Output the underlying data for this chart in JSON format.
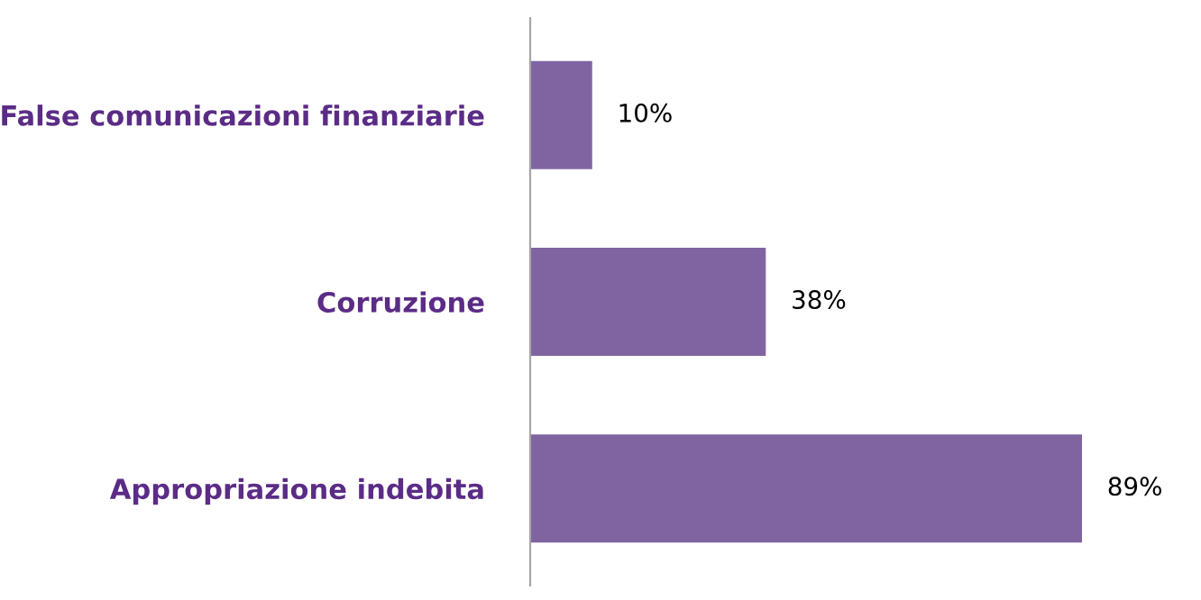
{
  "chart_data": {
    "type": "bar",
    "orientation": "horizontal",
    "categories": [
      "False comunicazioni finanziarie",
      "Corruzione",
      "Appropriazione indebita"
    ],
    "values": [
      10,
      38,
      89
    ],
    "value_labels": [
      "10%",
      "38%",
      "89%"
    ],
    "color": "#8064a2",
    "grid": false,
    "legend": false,
    "tick_labels": "y"
  }
}
